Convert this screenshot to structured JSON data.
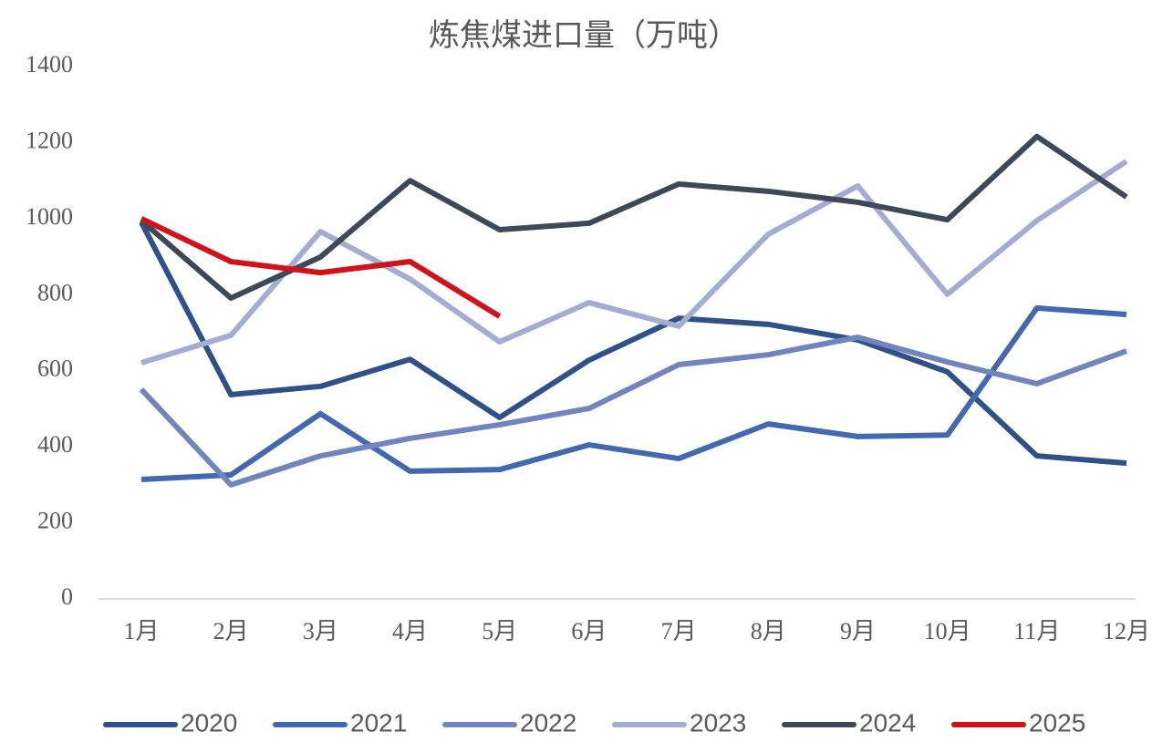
{
  "chart_data": {
    "type": "line",
    "title": "炼焦煤进口量（万吨）",
    "categories": [
      "1月",
      "2月",
      "3月",
      "4月",
      "5月",
      "6月",
      "7月",
      "8月",
      "9月",
      "10月",
      "11月",
      "12月"
    ],
    "series": [
      {
        "name": "2020",
        "color": "#2f5089",
        "values": [
          990,
          537,
          559,
          630,
          477,
          628,
          738,
          722,
          681,
          597,
          376,
          357
        ]
      },
      {
        "name": "2021",
        "color": "#4468b0",
        "values": [
          314,
          326,
          487,
          336,
          340,
          405,
          369,
          460,
          427,
          431,
          765,
          748
        ]
      },
      {
        "name": "2022",
        "color": "#7085c0",
        "values": [
          551,
          300,
          376,
          422,
          458,
          501,
          616,
          642,
          688,
          623,
          566,
          652
        ]
      },
      {
        "name": "2023",
        "color": "#a3acd2",
        "values": [
          621,
          693,
          966,
          841,
          676,
          779,
          717,
          959,
          1086,
          801,
          995,
          1151
        ]
      },
      {
        "name": "2024",
        "color": "#3e4958",
        "values": [
          995,
          791,
          899,
          1100,
          971,
          988,
          1091,
          1072,
          1043,
          997,
          1216,
          1057
        ]
      },
      {
        "name": "2025",
        "color": "#d0121b",
        "values": [
          1000,
          887,
          858,
          887,
          743,
          null,
          null,
          null,
          null,
          null,
          null,
          null
        ]
      }
    ],
    "ylim": [
      0,
      1400
    ],
    "yticks": [
      0,
      200,
      400,
      600,
      800,
      1000,
      1200,
      1400
    ],
    "grid": false,
    "legend": "bottom"
  }
}
